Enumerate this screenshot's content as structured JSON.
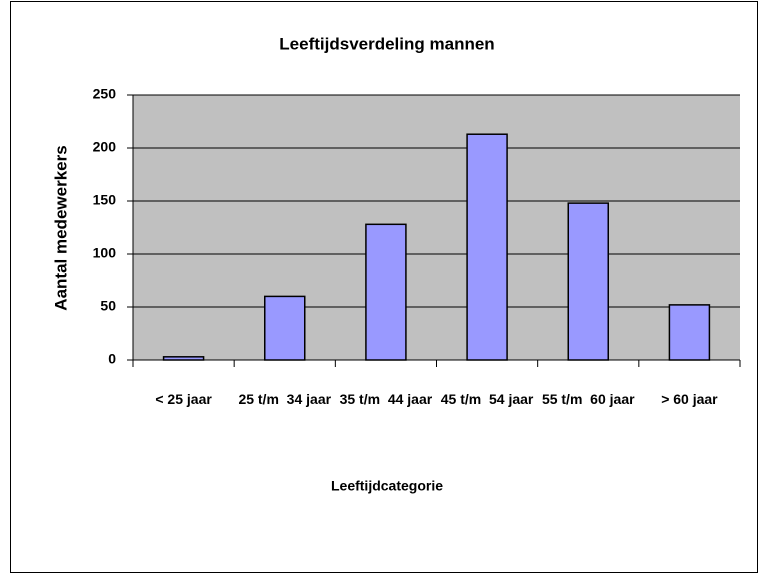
{
  "chart_data": {
    "type": "bar",
    "title": "Leeftijdsverdeling mannen",
    "x_label": "Leeftijdcategorie",
    "y_label": "Aantal medewerkers",
    "categories": [
      "< 25 jaar",
      "25 t/m  34 jaar",
      "35 t/m  44 jaar",
      "45 t/m  54 jaar",
      "55 t/m  60 jaar",
      "> 60 jaar"
    ],
    "values": [
      3,
      60,
      128,
      213,
      148,
      52
    ],
    "color": "#9999ff",
    "ylim": [
      0,
      250
    ],
    "yticks": [
      0,
      50,
      100,
      150,
      200,
      250
    ],
    "grid": true
  }
}
